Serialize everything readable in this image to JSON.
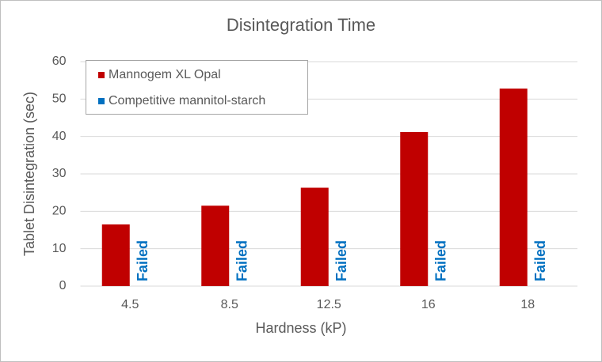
{
  "chart_data": {
    "type": "bar",
    "title": "Disintegration Time",
    "x_label": "Hardness (kP)",
    "y_label": "Tablet Disintegration (sec)",
    "categories": [
      "4.5",
      "8.5",
      "12.5",
      "16",
      "18"
    ],
    "series": [
      {
        "name": "Mannogem XL Opal",
        "color": "#c00000",
        "values": [
          16.5,
          21.5,
          26.3,
          41.2,
          52.8
        ]
      },
      {
        "name": "Competitive mannitol-starch",
        "color": "#0070c0",
        "values": [
          null,
          null,
          null,
          null,
          null
        ],
        "value_labels": [
          "Failed",
          "Failed",
          "Failed",
          "Failed",
          "Failed"
        ]
      }
    ],
    "ylim": [
      0,
      60
    ],
    "yticks": [
      0,
      10,
      20,
      30,
      40,
      50,
      60
    ],
    "grid": true,
    "legend": "top-left"
  }
}
